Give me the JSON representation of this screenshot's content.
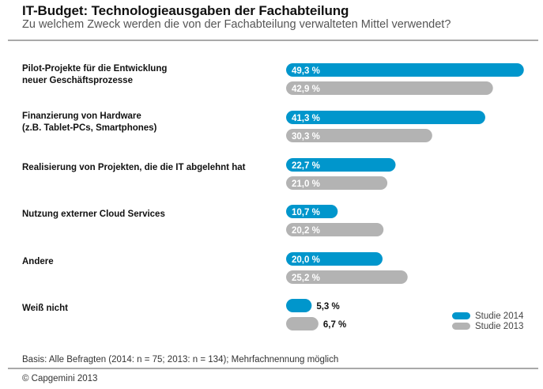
{
  "chart_data": {
    "type": "bar",
    "orientation": "horizontal",
    "title": "IT-Budget: Technologieausgaben der Fachabteilung",
    "subtitle": "Zu welchem Zweck werden die von der Fachabteilung verwalteten Mittel verwendet?",
    "xlabel": "",
    "ylabel": "",
    "xlim": [
      0,
      50
    ],
    "unit": "%",
    "grid": false,
    "legend_position": "bottom-right",
    "categories": [
      "Pilot-Projekte für die Entwicklung\nneuer Geschäftsprozesse",
      "Finanzierung von Hardware\n(z.B. Tablet-PCs, Smartphones)",
      "Realisierung von Projekten, die die IT abgelehnt hat",
      "Nutzung externer Cloud Services",
      "Andere",
      "Weiß nicht"
    ],
    "series": [
      {
        "name": "Studie 2014",
        "color": "#0096cc",
        "values": [
          49.3,
          41.3,
          22.7,
          10.7,
          20.0,
          5.3
        ],
        "labels": [
          "49,3 %",
          "41,3 %",
          "22,7 %",
          "10,7 %",
          "20,0 %",
          "5,3 %"
        ]
      },
      {
        "name": "Studie 2013",
        "color": "#b3b3b3",
        "values": [
          42.9,
          30.3,
          21.0,
          20.2,
          25.2,
          6.7
        ],
        "labels": [
          "42,9 %",
          "30,3 %",
          "21,0 %",
          "20,2 %",
          "25,2 %",
          "6,7 %"
        ]
      }
    ]
  },
  "footer": {
    "note": "Basis: Alle Befragten (2014: n = 75; 2013: n = 134); Mehrfachnennung möglich",
    "copyright": "© Capgemini 2013"
  }
}
